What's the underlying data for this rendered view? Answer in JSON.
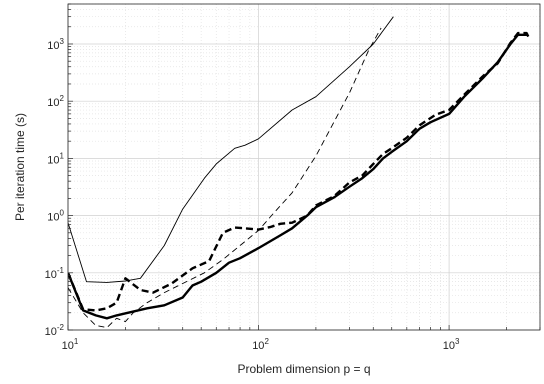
{
  "chart_data": {
    "type": "line",
    "title": "",
    "xlabel": "Problem dimension p = q",
    "ylabel": "Per iteration time (s)",
    "xscale": "log",
    "yscale": "log",
    "xlim": [
      10,
      3000
    ],
    "ylim": [
      0.01,
      5000
    ],
    "grid": true,
    "minor_grid": true,
    "legend": "none",
    "x_ticks": [
      {
        "value": 10,
        "base": "10",
        "exp": "1"
      },
      {
        "value": 100,
        "base": "10",
        "exp": "2"
      },
      {
        "value": 1000,
        "base": "10",
        "exp": "3"
      }
    ],
    "y_ticks": [
      {
        "value": 0.01,
        "base": "10",
        "exp": "-2"
      },
      {
        "value": 0.1,
        "base": "10",
        "exp": "-1"
      },
      {
        "value": 1,
        "base": "10",
        "exp": "0"
      },
      {
        "value": 10,
        "base": "10",
        "exp": "1"
      },
      {
        "value": 100,
        "base": "10",
        "exp": "2"
      },
      {
        "value": 1000,
        "base": "10",
        "exp": "3"
      }
    ],
    "series": [
      {
        "style": "thin-solid",
        "points": [
          [
            10,
            0.75
          ],
          [
            12.5,
            0.07
          ],
          [
            16,
            0.068
          ],
          [
            20,
            0.072
          ],
          [
            24,
            0.08
          ],
          [
            32,
            0.3
          ],
          [
            40,
            1.3
          ],
          [
            52,
            4.5
          ],
          [
            60,
            8
          ],
          [
            75,
            15
          ],
          [
            85,
            17
          ],
          [
            100,
            22
          ],
          [
            150,
            70
          ],
          [
            200,
            120
          ],
          [
            300,
            400
          ],
          [
            400,
            1000
          ],
          [
            510,
            3000
          ]
        ]
      },
      {
        "style": "thin-dashed",
        "points": [
          [
            10,
            0.055
          ],
          [
            12,
            0.02
          ],
          [
            14,
            0.012
          ],
          [
            16,
            0.011
          ],
          [
            18,
            0.016
          ],
          [
            20,
            0.014
          ],
          [
            22,
            0.02
          ],
          [
            26,
            0.03
          ],
          [
            32,
            0.045
          ],
          [
            40,
            0.065
          ],
          [
            52,
            0.1
          ],
          [
            65,
            0.17
          ],
          [
            80,
            0.3
          ],
          [
            100,
            0.55
          ],
          [
            120,
            1.1
          ],
          [
            150,
            2.5
          ],
          [
            200,
            11
          ],
          [
            300,
            140
          ],
          [
            380,
            800
          ],
          [
            440,
            1900
          ]
        ]
      },
      {
        "style": "thick-dashed",
        "points": [
          [
            10,
            0.1
          ],
          [
            12,
            0.023
          ],
          [
            14,
            0.022
          ],
          [
            16,
            0.024
          ],
          [
            18,
            0.03
          ],
          [
            20,
            0.08
          ],
          [
            24,
            0.05
          ],
          [
            28,
            0.045
          ],
          [
            35,
            0.065
          ],
          [
            45,
            0.12
          ],
          [
            55,
            0.16
          ],
          [
            65,
            0.5
          ],
          [
            75,
            0.62
          ],
          [
            85,
            0.6
          ],
          [
            100,
            0.57
          ],
          [
            115,
            0.63
          ],
          [
            130,
            0.72
          ],
          [
            150,
            0.75
          ],
          [
            180,
            1.0
          ],
          [
            200,
            1.5
          ],
          [
            250,
            2.2
          ],
          [
            300,
            3.8
          ],
          [
            350,
            5
          ],
          [
            400,
            8
          ],
          [
            450,
            12
          ],
          [
            500,
            15
          ],
          [
            600,
            23
          ],
          [
            700,
            38
          ],
          [
            850,
            58
          ],
          [
            1000,
            70
          ],
          [
            1200,
            130
          ],
          [
            1500,
            270
          ],
          [
            1800,
            460
          ],
          [
            2100,
            1050
          ],
          [
            2300,
            1550
          ],
          [
            2550,
            1550
          ],
          [
            2650,
            1200
          ]
        ]
      },
      {
        "style": "thick-solid",
        "points": [
          [
            10,
            0.1
          ],
          [
            12,
            0.022
          ],
          [
            14,
            0.018
          ],
          [
            16,
            0.016
          ],
          [
            18,
            0.018
          ],
          [
            22,
            0.021
          ],
          [
            26,
            0.024
          ],
          [
            32,
            0.027
          ],
          [
            40,
            0.037
          ],
          [
            45,
            0.06
          ],
          [
            50,
            0.07
          ],
          [
            60,
            0.1
          ],
          [
            70,
            0.15
          ],
          [
            80,
            0.18
          ],
          [
            100,
            0.27
          ],
          [
            130,
            0.45
          ],
          [
            150,
            0.6
          ],
          [
            180,
            1.0
          ],
          [
            200,
            1.4
          ],
          [
            250,
            2.1
          ],
          [
            300,
            3.2
          ],
          [
            350,
            4.5
          ],
          [
            400,
            6.5
          ],
          [
            450,
            10
          ],
          [
            500,
            13
          ],
          [
            600,
            20
          ],
          [
            700,
            33
          ],
          [
            800,
            43
          ],
          [
            1000,
            60
          ],
          [
            1200,
            120
          ],
          [
            1500,
            250
          ],
          [
            1800,
            480
          ],
          [
            2100,
            1000
          ],
          [
            2300,
            1450
          ],
          [
            2600,
            1450
          ]
        ]
      }
    ]
  }
}
